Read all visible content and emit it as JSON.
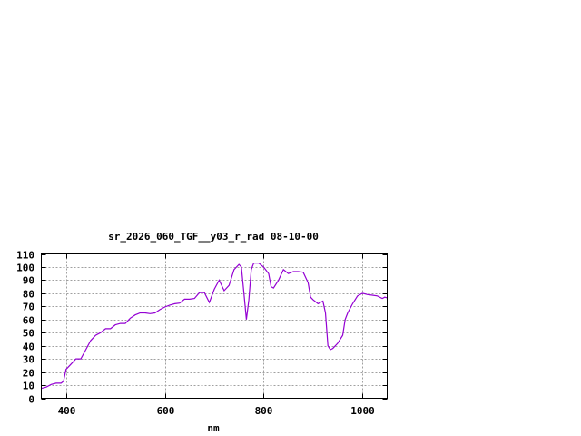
{
  "chart_data": {
    "type": "line",
    "title": "sr_2026_060_TGF__y03_r_rad 08-10-00",
    "xlabel": "nm",
    "ylabel": "",
    "xlim": [
      350,
      1050
    ],
    "ylim": [
      0,
      110
    ],
    "xticks": [
      400,
      600,
      800,
      1000
    ],
    "yticks": [
      0,
      10,
      20,
      30,
      40,
      50,
      60,
      70,
      80,
      90,
      100,
      110
    ],
    "grid": true,
    "line_color": "#9400d3",
    "series": [
      {
        "x": [
          350,
          360,
          370,
          380,
          390,
          395,
          400,
          410,
          420,
          430,
          440,
          450,
          460,
          470,
          480,
          490,
          500,
          510,
          520,
          530,
          540,
          550,
          560,
          570,
          580,
          590,
          600,
          610,
          620,
          630,
          640,
          650,
          660,
          670,
          680,
          690,
          700,
          710,
          720,
          730,
          740,
          750,
          755,
          760,
          765,
          770,
          775,
          780,
          790,
          800,
          810,
          815,
          820,
          830,
          840,
          850,
          860,
          870,
          880,
          890,
          895,
          900,
          910,
          920,
          925,
          930,
          935,
          940,
          950,
          960,
          965,
          970,
          980,
          990,
          1000,
          1010,
          1020,
          1030,
          1040,
          1045,
          1050
        ],
        "y": [
          7.5,
          8.5,
          10.5,
          11.5,
          11.5,
          13,
          22,
          26,
          30,
          30,
          37,
          44,
          48,
          50,
          53,
          53,
          56,
          57,
          57,
          61,
          63.5,
          65,
          65,
          64.5,
          65,
          67.5,
          69.5,
          71,
          72,
          72.5,
          75.5,
          75.5,
          76,
          80.5,
          80.5,
          73,
          83,
          90,
          82,
          86,
          98,
          102,
          100,
          80,
          60,
          75,
          98,
          103,
          103,
          100,
          95,
          85,
          84,
          90,
          98,
          95,
          96.5,
          96.5,
          96,
          88,
          77,
          75,
          72,
          74,
          65,
          40,
          37,
          38,
          42,
          48,
          60,
          65,
          72,
          78,
          80,
          79,
          78.5,
          78,
          76,
          77,
          76.5
        ]
      }
    ]
  }
}
